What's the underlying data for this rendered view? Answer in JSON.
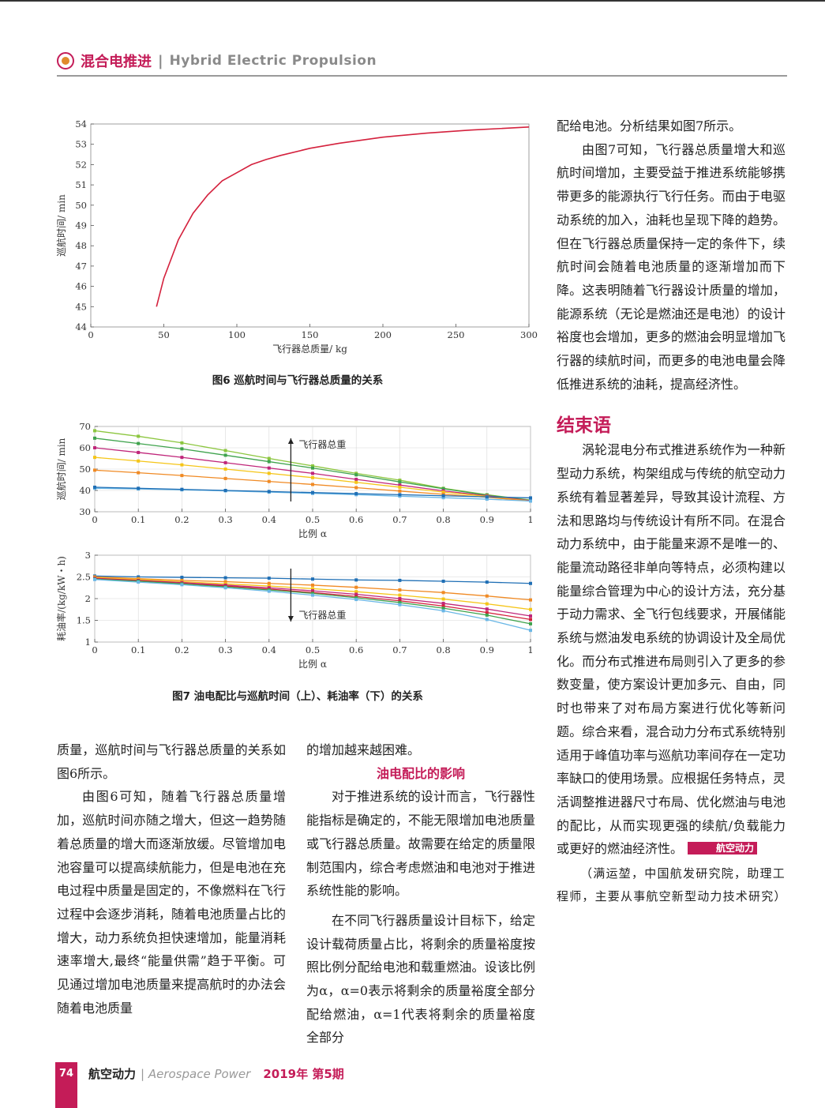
{
  "header": {
    "title_cn": "混合电推进",
    "separator": "|",
    "title_en": "Hybrid Electric Propulsion"
  },
  "fig6": {
    "caption": "图6  巡航时间与飞行器总质量的关系",
    "chart_data": {
      "type": "line",
      "xlabel": "飞行器总质量/ kg",
      "ylabel": "巡航时间/ min",
      "xlim": [
        0,
        300
      ],
      "ylim": [
        44,
        54
      ],
      "x_ticks": [
        "0",
        "50",
        "100",
        "150",
        "200",
        "250",
        "300"
      ],
      "y_ticks": [
        "44",
        "45",
        "46",
        "47",
        "48",
        "49",
        "50",
        "51",
        "52",
        "53",
        "54"
      ],
      "series": [
        {
          "color": "#d4213d",
          "x": [
            45,
            50,
            60,
            70,
            80,
            90,
            100,
            110,
            120,
            130,
            150,
            170,
            200,
            230,
            260,
            300
          ],
          "y": [
            45.0,
            46.4,
            48.3,
            49.6,
            50.5,
            51.2,
            51.6,
            52.0,
            52.25,
            52.45,
            52.8,
            53.05,
            53.35,
            53.55,
            53.7,
            53.85
          ]
        }
      ]
    }
  },
  "fig7": {
    "caption": "图7  油电配比与巡航时间（上）、耗油率（下）的关系",
    "top": {
      "chart_data": {
        "type": "line",
        "xlabel": "比例 α",
        "ylabel": "巡航时间/ min",
        "xlim": [
          0,
          1
        ],
        "ylim": [
          30,
          70
        ],
        "x_ticks": [
          "0",
          "0.1",
          "0.2",
          "0.3",
          "0.4",
          "0.5",
          "0.6",
          "0.7",
          "0.8",
          "0.9",
          "1"
        ],
        "y_ticks": [
          "30",
          "40",
          "50",
          "60",
          "70"
        ],
        "annotation": "飞行器总重",
        "x": [
          0,
          0.1,
          0.2,
          0.3,
          0.4,
          0.5,
          0.6,
          0.7,
          0.8,
          0.9,
          1
        ],
        "series": [
          {
            "color": "#8cc63f",
            "values": [
              68,
              65.4,
              62.3,
              58.7,
              55,
              51.5,
              48,
              44.8,
              41,
              38,
              35.5
            ]
          },
          {
            "color": "#3fa34d",
            "values": [
              64.5,
              62,
              59.5,
              56.5,
              53.5,
              50.5,
              47.3,
              44,
              40.8,
              37.8,
              35.3
            ]
          },
          {
            "color": "#c0267a",
            "values": [
              60,
              57.8,
              55.5,
              53,
              50.5,
              48,
              45.2,
              42.5,
              39.8,
              37.5,
              35.2
            ]
          },
          {
            "color": "#f5c518",
            "values": [
              55.5,
              53.8,
              52,
              50,
              48,
              46,
              43.8,
              41.5,
              39.2,
              37.2,
              35
            ]
          },
          {
            "color": "#f08a24",
            "values": [
              49.5,
              48.3,
              47,
              45.6,
              44.2,
              42.8,
              41.3,
              39.7,
              38.2,
              36.8,
              35
            ]
          },
          {
            "color": "#6ab7e6",
            "values": [
              41,
              40.7,
              40.3,
              39.8,
              39.2,
              38.6,
              38,
              37.3,
              36.6,
              35.9,
              35
            ]
          },
          {
            "color": "#1f6fb5",
            "values": [
              41.5,
              41,
              40.5,
              40,
              39.5,
              39,
              38.5,
              38,
              37.5,
              37,
              36.5
            ]
          }
        ]
      }
    },
    "bottom": {
      "chart_data": {
        "type": "line",
        "xlabel": "比例 α",
        "ylabel": "耗油率/(kg/kW・h)",
        "xlim": [
          0,
          1
        ],
        "ylim": [
          1,
          3
        ],
        "x_ticks": [
          "0",
          "0.1",
          "0.2",
          "0.3",
          "0.4",
          "0.5",
          "0.6",
          "0.7",
          "0.8",
          "0.9",
          "1"
        ],
        "y_ticks": [
          "1",
          "1.5",
          "2",
          "2.5",
          "3"
        ],
        "annotation": "飞行器总重",
        "x": [
          0,
          0.1,
          0.2,
          0.3,
          0.4,
          0.5,
          0.6,
          0.7,
          0.8,
          0.9,
          1
        ],
        "series": [
          {
            "color": "#1f6fb5",
            "values": [
              2.52,
              2.5,
              2.49,
              2.48,
              2.47,
              2.45,
              2.43,
              2.42,
              2.4,
              2.38,
              2.35
            ]
          },
          {
            "color": "#f08a24",
            "values": [
              2.5,
              2.46,
              2.42,
              2.39,
              2.35,
              2.31,
              2.26,
              2.2,
              2.14,
              2.06,
              1.97
            ]
          },
          {
            "color": "#f5c518",
            "values": [
              2.48,
              2.44,
              2.39,
              2.34,
              2.29,
              2.23,
              2.16,
              2.08,
              1.99,
              1.88,
              1.75
            ]
          },
          {
            "color": "#c0267a",
            "values": [
              2.47,
              2.42,
              2.37,
              2.31,
              2.25,
              2.18,
              2.1,
              2.0,
              1.89,
              1.76,
              1.6
            ]
          },
          {
            "color": "#d4213d",
            "values": [
              2.46,
              2.41,
              2.35,
              2.29,
              2.22,
              2.14,
              2.05,
              1.95,
              1.83,
              1.68,
              1.52
            ]
          },
          {
            "color": "#3fa34d",
            "values": [
              2.45,
              2.4,
              2.34,
              2.27,
              2.2,
              2.12,
              2.02,
              1.91,
              1.78,
              1.62,
              1.42
            ]
          },
          {
            "color": "#6ab7e6",
            "values": [
              2.44,
              2.38,
              2.32,
              2.25,
              2.17,
              2.08,
              1.98,
              1.86,
              1.72,
              1.52,
              1.27
            ]
          }
        ]
      }
    }
  },
  "col_left": {
    "p1": "质量，巡航时间与飞行器总质量的关系如图6所示。",
    "p2": "由图6可知，随着飞行器总质量增加，巡航时间亦随之增大，但这一趋势随着总质量的增大而逐渐放缓。尽管增加电池容量可以提高续航能力，但是电池在充电过程中质量是固定的，不像燃料在飞行过程中会逐步消耗，随着电池质量占比的增大，动力系统负担快速增加，能量消耗速率增大,最终“能量供需”趋于平衡。可见通过增加电池质量来提高航时的办法会随着电池质量"
  },
  "col_mid": {
    "p1": "的增加越来越困难。",
    "subhead": "油电配比的影响",
    "p2": "对于推进系统的设计而言，飞行器性能指标是确定的，不能无限增加电池质量或飞行器总质量。故需要在给定的质量限制范围内，综合考虑燃油和电池对于推进系统性能的影响。",
    "p3": "在不同飞行器质量设计目标下，给定设计载荷质量占比，将剩余的质量裕度按照比例分配给电池和载重燃油。设该比例为α，α=0表示将剩余的质量裕度全部分配给燃油，α=1代表将剩余的质量裕度全部分"
  },
  "col_right": {
    "p1": "配给电池。分析结果如图7所示。",
    "p2": "由图7可知，飞行器总质量增大和巡航时间增加，主要受益于推进系统能够携带更多的能源执行飞行任务。而由于电驱动系统的加入，油耗也呈现下降的趋势。但在飞行器总质量保持一定的条件下，续航时间会随着电池质量的逐渐增加而下降。这表明随着飞行器设计质量的增加，能源系统（无论是燃油还是电池）的设计裕度也会增加，更多的燃油会明显增加飞行器的续航时间，而更多的电池电量会降低推进系统的油耗，提高经济性。",
    "section_title": "结束语",
    "p3": "涡轮混电分布式推进系统作为一种新型动力系统，构架组成与传统的航空动力系统有着显著差异，导致其设计流程、方法和思路均与传统设计有所不同。在混合动力系统中，由于能量来源不是唯一的、能量流动路径非单向等特点，必须构建以能量综合管理为中心的设计方法，充分基于动力需求、全飞行包线要求，开展储能系统与燃油发电系统的协调设计及全局优化。而分布式推进布局则引入了更多的参数变量，使方案设计更加多元、自由，同时也带来了对布局方案进行优化等新问题。综合来看，混合动力分布式系统特别适用于峰值功率与巡航功率间存在一定功率缺口的使用场景。应根据任务特点，灵活调整推进器尺寸布局、优化燃油与电池的配比，从而实现更强的续航/负载能力或更好的燃油经济性。",
    "badge": "航空动力",
    "author": "（满运堃，中国航发研究院，助理工程师，主要从事航空新型动力技术研究）"
  },
  "footer": {
    "page": "74",
    "journal_cn": "航空动力",
    "journal_en": "| Aerospace Power",
    "issue": "2019年 第5期"
  }
}
